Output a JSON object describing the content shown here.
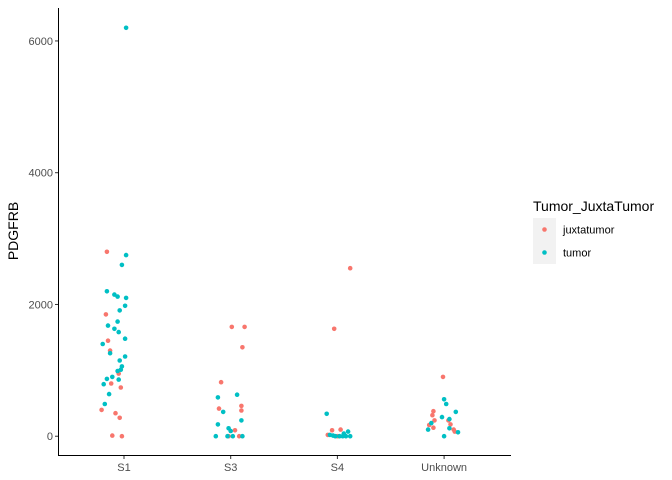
{
  "chart_data": {
    "type": "scatter",
    "jitter": true,
    "title": "",
    "xlabel": "",
    "ylabel": "PDGFRB",
    "categories": [
      "S1",
      "S3",
      "S4",
      "Unknown"
    ],
    "y_ticks": [
      0,
      2000,
      4000,
      6000
    ],
    "ylim": [
      -300,
      6500
    ],
    "grid": false,
    "legend": {
      "title": "Tumor_JuxtaTumor",
      "position": "right",
      "entries": [
        "juxtatumor",
        "tumor"
      ]
    },
    "series": [
      {
        "name": "juxtatumor",
        "color": "#F8766D",
        "points": [
          {
            "x": "S1",
            "dx": -0.21,
            "y": 400
          },
          {
            "x": "S1",
            "dx": -0.17,
            "y": 1850
          },
          {
            "x": "S1",
            "dx": -0.13,
            "y": 1300
          },
          {
            "x": "S1",
            "dx": -0.12,
            "y": 800
          },
          {
            "x": "S1",
            "dx": -0.11,
            "y": 10
          },
          {
            "x": "S1",
            "dx": -0.05,
            "y": 950
          },
          {
            "x": "S1",
            "dx": -0.08,
            "y": 350
          },
          {
            "x": "S1",
            "dx": -0.04,
            "y": 280
          },
          {
            "x": "S1",
            "dx": -0.03,
            "y": 740
          },
          {
            "x": "S1",
            "dx": -0.02,
            "y": 1
          },
          {
            "x": "S1",
            "dx": -0.16,
            "y": 2800
          },
          {
            "x": "S1",
            "dx": -0.15,
            "y": 1450
          },
          {
            "x": "S3",
            "dx": -0.09,
            "y": 820
          },
          {
            "x": "S3",
            "dx": -0.11,
            "y": 420
          },
          {
            "x": "S3",
            "dx": 0.01,
            "y": 1660
          },
          {
            "x": "S3",
            "dx": 0.13,
            "y": 1660
          },
          {
            "x": "S3",
            "dx": 0.11,
            "y": 1350
          },
          {
            "x": "S3",
            "dx": 0.1,
            "y": 460
          },
          {
            "x": "S3",
            "dx": 0.1,
            "y": 390
          },
          {
            "x": "S3",
            "dx": 0.04,
            "y": 90
          },
          {
            "x": "S3",
            "dx": -0.02,
            "y": 1
          },
          {
            "x": "S3",
            "dx": 0.08,
            "y": 1
          },
          {
            "x": "S4",
            "dx": 0.12,
            "y": 2550
          },
          {
            "x": "S4",
            "dx": -0.03,
            "y": 1630
          },
          {
            "x": "S4",
            "dx": 0.03,
            "y": 100
          },
          {
            "x": "S4",
            "dx": -0.05,
            "y": 90
          },
          {
            "x": "S4",
            "dx": -0.09,
            "y": 20
          },
          {
            "x": "S4",
            "dx": 0.0,
            "y": 1
          },
          {
            "x": "Unknown",
            "dx": -0.01,
            "y": 900
          },
          {
            "x": "Unknown",
            "dx": -0.1,
            "y": 380
          },
          {
            "x": "Unknown",
            "dx": -0.11,
            "y": 320
          },
          {
            "x": "Unknown",
            "dx": -0.09,
            "y": 240
          },
          {
            "x": "Unknown",
            "dx": -0.14,
            "y": 170
          },
          {
            "x": "Unknown",
            "dx": -0.1,
            "y": 130
          },
          {
            "x": "Unknown",
            "dx": 0.06,
            "y": 180
          },
          {
            "x": "Unknown",
            "dx": 0.09,
            "y": 100
          },
          {
            "x": "Unknown",
            "dx": 0.1,
            "y": 70
          },
          {
            "x": "Unknown",
            "dx": 0.04,
            "y": 240
          }
        ]
      },
      {
        "name": "tumor",
        "color": "#00BFC4",
        "points": [
          {
            "x": "S1",
            "dx": 0.02,
            "y": 6200
          },
          {
            "x": "S1",
            "dx": 0.02,
            "y": 2750
          },
          {
            "x": "S1",
            "dx": -0.02,
            "y": 2600
          },
          {
            "x": "S1",
            "dx": -0.16,
            "y": 2200
          },
          {
            "x": "S1",
            "dx": -0.09,
            "y": 2150
          },
          {
            "x": "S1",
            "dx": -0.06,
            "y": 2120
          },
          {
            "x": "S1",
            "dx": 0.02,
            "y": 2100
          },
          {
            "x": "S1",
            "dx": 0.01,
            "y": 1980
          },
          {
            "x": "S1",
            "dx": -0.04,
            "y": 1910
          },
          {
            "x": "S1",
            "dx": -0.06,
            "y": 1740
          },
          {
            "x": "S1",
            "dx": -0.15,
            "y": 1680
          },
          {
            "x": "S1",
            "dx": -0.09,
            "y": 1630
          },
          {
            "x": "S1",
            "dx": -0.05,
            "y": 1580
          },
          {
            "x": "S1",
            "dx": 0.01,
            "y": 1480
          },
          {
            "x": "S1",
            "dx": -0.2,
            "y": 1400
          },
          {
            "x": "S1",
            "dx": -0.13,
            "y": 1260
          },
          {
            "x": "S1",
            "dx": 0.01,
            "y": 1210
          },
          {
            "x": "S1",
            "dx": -0.04,
            "y": 1150
          },
          {
            "x": "S1",
            "dx": -0.02,
            "y": 1060
          },
          {
            "x": "S1",
            "dx": -0.03,
            "y": 1010
          },
          {
            "x": "S1",
            "dx": -0.06,
            "y": 990
          },
          {
            "x": "S1",
            "dx": -0.11,
            "y": 900
          },
          {
            "x": "S1",
            "dx": -0.16,
            "y": 870
          },
          {
            "x": "S1",
            "dx": -0.05,
            "y": 860
          },
          {
            "x": "S1",
            "dx": -0.19,
            "y": 790
          },
          {
            "x": "S1",
            "dx": -0.14,
            "y": 640
          },
          {
            "x": "S1",
            "dx": -0.18,
            "y": 490
          },
          {
            "x": "S3",
            "dx": 0.06,
            "y": 630
          },
          {
            "x": "S3",
            "dx": -0.12,
            "y": 590
          },
          {
            "x": "S3",
            "dx": -0.07,
            "y": 370
          },
          {
            "x": "S3",
            "dx": 0.1,
            "y": 240
          },
          {
            "x": "S3",
            "dx": -0.12,
            "y": 180
          },
          {
            "x": "S3",
            "dx": -0.02,
            "y": 120
          },
          {
            "x": "S3",
            "dx": 0.0,
            "y": 80
          },
          {
            "x": "S3",
            "dx": -0.14,
            "y": 1
          },
          {
            "x": "S3",
            "dx": -0.03,
            "y": 1
          },
          {
            "x": "S3",
            "dx": 0.02,
            "y": 1
          },
          {
            "x": "S3",
            "dx": 0.11,
            "y": 1
          },
          {
            "x": "S4",
            "dx": -0.1,
            "y": 340
          },
          {
            "x": "S4",
            "dx": 0.1,
            "y": 70
          },
          {
            "x": "S4",
            "dx": 0.06,
            "y": 40
          },
          {
            "x": "S4",
            "dx": -0.07,
            "y": 20
          },
          {
            "x": "S4",
            "dx": -0.04,
            "y": 10
          },
          {
            "x": "S4",
            "dx": -0.02,
            "y": 1
          },
          {
            "x": "S4",
            "dx": 0.02,
            "y": 1
          },
          {
            "x": "S4",
            "dx": 0.05,
            "y": 1
          },
          {
            "x": "S4",
            "dx": 0.08,
            "y": 1
          },
          {
            "x": "S4",
            "dx": 0.12,
            "y": 1
          },
          {
            "x": "Unknown",
            "dx": 0.0,
            "y": 560
          },
          {
            "x": "Unknown",
            "dx": 0.02,
            "y": 490
          },
          {
            "x": "Unknown",
            "dx": 0.11,
            "y": 370
          },
          {
            "x": "Unknown",
            "dx": -0.02,
            "y": 290
          },
          {
            "x": "Unknown",
            "dx": 0.05,
            "y": 260
          },
          {
            "x": "Unknown",
            "dx": -0.12,
            "y": 200
          },
          {
            "x": "Unknown",
            "dx": 0.05,
            "y": 120
          },
          {
            "x": "Unknown",
            "dx": -0.15,
            "y": 100
          },
          {
            "x": "Unknown",
            "dx": 0.13,
            "y": 60
          },
          {
            "x": "Unknown",
            "dx": 0.0,
            "y": 1
          }
        ]
      }
    ]
  }
}
